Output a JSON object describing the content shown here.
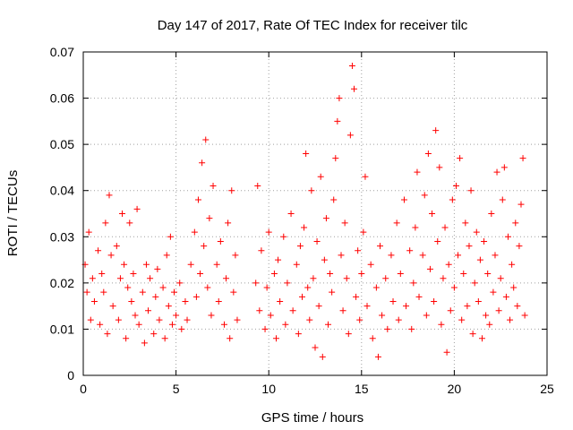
{
  "chart_data": {
    "type": "scatter",
    "title": "Day 147 of 2017, Rate Of TEC Index for receiver tilc",
    "xlabel": "GPS time / hours",
    "ylabel": "ROTI / TECUs",
    "xlim": [
      0,
      25
    ],
    "ylim": [
      0,
      0.07
    ],
    "x_ticks": [
      0,
      5,
      10,
      15,
      20,
      25
    ],
    "x_tick_labels": [
      "0",
      "5",
      "10",
      "15",
      "20",
      "25"
    ],
    "y_ticks": [
      0,
      0.01,
      0.02,
      0.03,
      0.04,
      0.05,
      0.06,
      0.07
    ],
    "y_tick_labels": [
      "0",
      "0.01",
      "0.02",
      "0.03",
      "0.04",
      "0.05",
      "0.06",
      "0.07"
    ],
    "grid": true,
    "marker": "plus",
    "color": "#ff0000",
    "series": [
      {
        "points": [
          [
            0.1,
            0.024
          ],
          [
            0.2,
            0.018
          ],
          [
            0.3,
            0.031
          ],
          [
            0.4,
            0.012
          ],
          [
            0.5,
            0.021
          ],
          [
            0.6,
            0.016
          ],
          [
            0.8,
            0.027
          ],
          [
            0.9,
            0.011
          ],
          [
            1.0,
            0.022
          ],
          [
            1.1,
            0.018
          ],
          [
            1.2,
            0.033
          ],
          [
            1.3,
            0.009
          ],
          [
            1.4,
            0.039
          ],
          [
            1.5,
            0.026
          ],
          [
            1.6,
            0.015
          ],
          [
            1.8,
            0.028
          ],
          [
            1.9,
            0.012
          ],
          [
            2.0,
            0.021
          ],
          [
            2.1,
            0.035
          ],
          [
            2.2,
            0.024
          ],
          [
            2.3,
            0.008
          ],
          [
            2.4,
            0.019
          ],
          [
            2.5,
            0.033
          ],
          [
            2.6,
            0.016
          ],
          [
            2.7,
            0.022
          ],
          [
            2.8,
            0.013
          ],
          [
            2.9,
            0.036
          ],
          [
            3.0,
            0.011
          ],
          [
            3.2,
            0.018
          ],
          [
            3.3,
            0.007
          ],
          [
            3.4,
            0.024
          ],
          [
            3.5,
            0.014
          ],
          [
            3.6,
            0.021
          ],
          [
            3.8,
            0.009
          ],
          [
            3.9,
            0.017
          ],
          [
            4.0,
            0.023
          ],
          [
            4.1,
            0.012
          ],
          [
            4.3,
            0.019
          ],
          [
            4.4,
            0.008
          ],
          [
            4.5,
            0.026
          ],
          [
            4.6,
            0.015
          ],
          [
            4.7,
            0.03
          ],
          [
            4.8,
            0.011
          ],
          [
            4.9,
            0.018
          ],
          [
            5.0,
            0.013
          ],
          [
            5.2,
            0.02
          ],
          [
            5.3,
            0.01
          ],
          [
            5.5,
            0.016
          ],
          [
            5.6,
            0.012
          ],
          [
            5.8,
            0.024
          ],
          [
            6.0,
            0.031
          ],
          [
            6.1,
            0.017
          ],
          [
            6.2,
            0.038
          ],
          [
            6.3,
            0.022
          ],
          [
            6.4,
            0.046
          ],
          [
            6.5,
            0.028
          ],
          [
            6.6,
            0.051
          ],
          [
            6.7,
            0.019
          ],
          [
            6.8,
            0.034
          ],
          [
            6.9,
            0.013
          ],
          [
            7.0,
            0.041
          ],
          [
            7.2,
            0.024
          ],
          [
            7.3,
            0.016
          ],
          [
            7.4,
            0.029
          ],
          [
            7.6,
            0.011
          ],
          [
            7.7,
            0.021
          ],
          [
            7.8,
            0.033
          ],
          [
            7.9,
            0.008
          ],
          [
            8.0,
            0.04
          ],
          [
            8.1,
            0.018
          ],
          [
            8.2,
            0.026
          ],
          [
            8.3,
            0.012
          ],
          [
            9.3,
            0.02
          ],
          [
            9.4,
            0.041
          ],
          [
            9.5,
            0.014
          ],
          [
            9.6,
            0.027
          ],
          [
            9.8,
            0.01
          ],
          [
            9.9,
            0.019
          ],
          [
            10.0,
            0.031
          ],
          [
            10.1,
            0.013
          ],
          [
            10.3,
            0.022
          ],
          [
            10.4,
            0.008
          ],
          [
            10.5,
            0.025
          ],
          [
            10.6,
            0.016
          ],
          [
            10.8,
            0.03
          ],
          [
            10.9,
            0.011
          ],
          [
            11.0,
            0.02
          ],
          [
            11.2,
            0.035
          ],
          [
            11.3,
            0.014
          ],
          [
            11.5,
            0.024
          ],
          [
            11.6,
            0.009
          ],
          [
            11.7,
            0.028
          ],
          [
            11.8,
            0.017
          ],
          [
            11.9,
            0.032
          ],
          [
            12.0,
            0.048
          ],
          [
            12.1,
            0.019
          ],
          [
            12.2,
            0.012
          ],
          [
            12.3,
            0.04
          ],
          [
            12.4,
            0.021
          ],
          [
            12.5,
            0.006
          ],
          [
            12.6,
            0.029
          ],
          [
            12.7,
            0.015
          ],
          [
            12.8,
            0.043
          ],
          [
            12.9,
            0.004
          ],
          [
            13.0,
            0.025
          ],
          [
            13.1,
            0.034
          ],
          [
            13.2,
            0.011
          ],
          [
            13.3,
            0.022
          ],
          [
            13.4,
            0.018
          ],
          [
            13.5,
            0.038
          ],
          [
            13.6,
            0.047
          ],
          [
            13.7,
            0.055
          ],
          [
            13.8,
            0.06
          ],
          [
            13.9,
            0.026
          ],
          [
            14.0,
            0.014
          ],
          [
            14.1,
            0.033
          ],
          [
            14.2,
            0.021
          ],
          [
            14.3,
            0.009
          ],
          [
            14.4,
            0.052
          ],
          [
            14.5,
            0.067
          ],
          [
            14.6,
            0.062
          ],
          [
            14.7,
            0.017
          ],
          [
            14.8,
            0.027
          ],
          [
            14.9,
            0.012
          ],
          [
            15.0,
            0.022
          ],
          [
            15.1,
            0.031
          ],
          [
            15.2,
            0.043
          ],
          [
            15.3,
            0.015
          ],
          [
            15.5,
            0.024
          ],
          [
            15.6,
            0.008
          ],
          [
            15.8,
            0.019
          ],
          [
            15.9,
            0.004
          ],
          [
            16.0,
            0.028
          ],
          [
            16.1,
            0.013
          ],
          [
            16.3,
            0.021
          ],
          [
            16.4,
            0.01
          ],
          [
            16.6,
            0.026
          ],
          [
            16.7,
            0.016
          ],
          [
            16.9,
            0.033
          ],
          [
            17.0,
            0.012
          ],
          [
            17.1,
            0.022
          ],
          [
            17.3,
            0.038
          ],
          [
            17.4,
            0.015
          ],
          [
            17.6,
            0.027
          ],
          [
            17.7,
            0.01
          ],
          [
            17.8,
            0.02
          ],
          [
            17.9,
            0.032
          ],
          [
            18.0,
            0.044
          ],
          [
            18.1,
            0.017
          ],
          [
            18.3,
            0.026
          ],
          [
            18.4,
            0.039
          ],
          [
            18.5,
            0.013
          ],
          [
            18.6,
            0.048
          ],
          [
            18.7,
            0.023
          ],
          [
            18.8,
            0.035
          ],
          [
            18.9,
            0.016
          ],
          [
            19.0,
            0.053
          ],
          [
            19.1,
            0.029
          ],
          [
            19.2,
            0.045
          ],
          [
            19.3,
            0.011
          ],
          [
            19.4,
            0.021
          ],
          [
            19.5,
            0.032
          ],
          [
            19.6,
            0.005
          ],
          [
            19.7,
            0.024
          ],
          [
            19.8,
            0.014
          ],
          [
            19.9,
            0.038
          ],
          [
            20.0,
            0.019
          ],
          [
            20.1,
            0.041
          ],
          [
            20.2,
            0.026
          ],
          [
            20.3,
            0.047
          ],
          [
            20.4,
            0.012
          ],
          [
            20.5,
            0.022
          ],
          [
            20.6,
            0.033
          ],
          [
            20.7,
            0.015
          ],
          [
            20.8,
            0.028
          ],
          [
            20.9,
            0.04
          ],
          [
            21.0,
            0.009
          ],
          [
            21.1,
            0.02
          ],
          [
            21.2,
            0.031
          ],
          [
            21.3,
            0.016
          ],
          [
            21.4,
            0.025
          ],
          [
            21.5,
            0.008
          ],
          [
            21.6,
            0.029
          ],
          [
            21.7,
            0.013
          ],
          [
            21.8,
            0.022
          ],
          [
            21.9,
            0.011
          ],
          [
            22.0,
            0.035
          ],
          [
            22.1,
            0.018
          ],
          [
            22.2,
            0.026
          ],
          [
            22.3,
            0.044
          ],
          [
            22.4,
            0.014
          ],
          [
            22.5,
            0.021
          ],
          [
            22.6,
            0.038
          ],
          [
            22.7,
            0.045
          ],
          [
            22.8,
            0.017
          ],
          [
            22.9,
            0.03
          ],
          [
            23.0,
            0.012
          ],
          [
            23.1,
            0.024
          ],
          [
            23.2,
            0.019
          ],
          [
            23.3,
            0.033
          ],
          [
            23.4,
            0.015
          ],
          [
            23.5,
            0.028
          ],
          [
            23.6,
            0.037
          ],
          [
            23.7,
            0.047
          ],
          [
            23.8,
            0.013
          ]
        ]
      }
    ]
  }
}
